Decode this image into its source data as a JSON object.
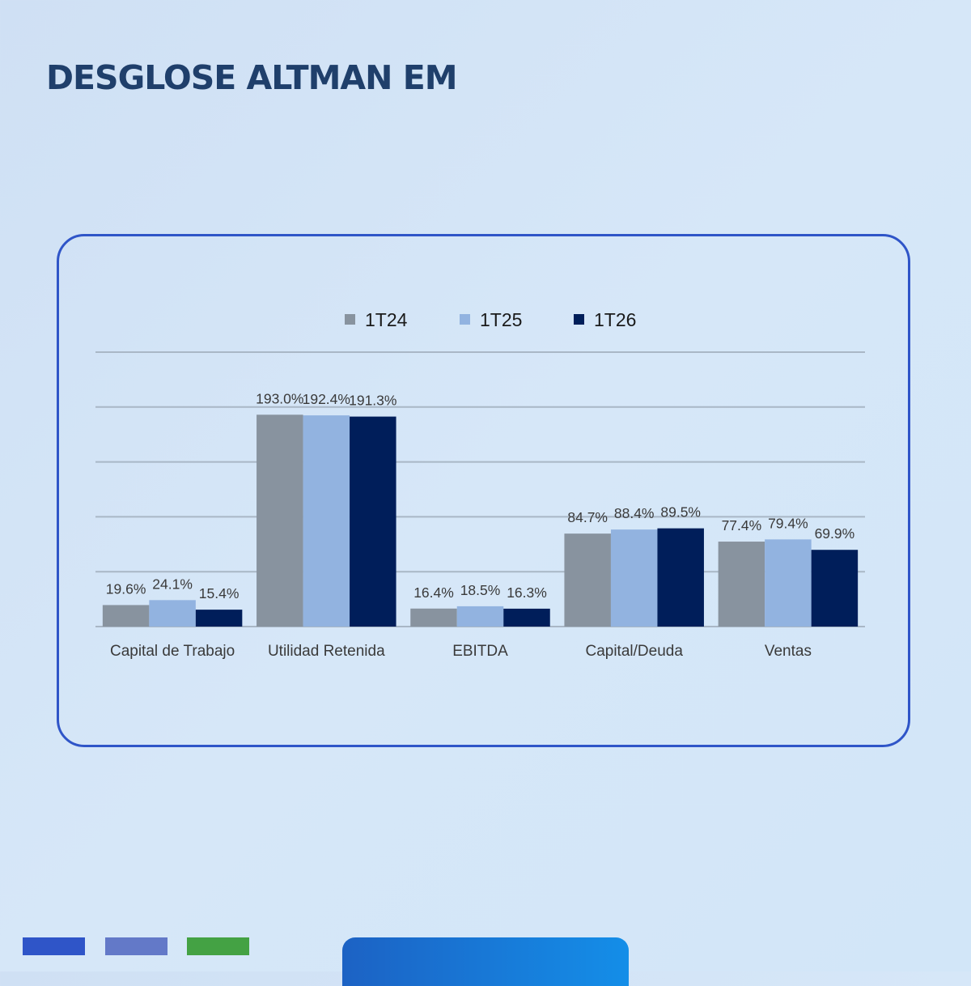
{
  "page": {
    "title": "DESGLOSE ALTMAN EM"
  },
  "colors": {
    "frame_border": "#2f55c8",
    "title": "#1f3f6b",
    "footer_swatches": [
      "#2f55c8",
      "#6379c8",
      "#44a244"
    ],
    "footer_tab_gradient": [
      "#1c62c4",
      "#148ee8"
    ]
  },
  "chart_data": {
    "type": "bar",
    "title": "",
    "xlabel": "",
    "ylabel": "",
    "ylim": [
      0,
      250
    ],
    "grid": true,
    "legend_position": "top-center",
    "categories": [
      "Capital de Trabajo",
      "Utilidad Retenida",
      "EBITDA",
      "Capital/Deuda",
      "Ventas"
    ],
    "series": [
      {
        "name": "1T24",
        "color": "#88939f",
        "values": [
          19.6,
          193.0,
          16.4,
          84.7,
          77.4
        ],
        "labels": [
          "19.6%",
          "193.0%",
          "16.4%",
          "84.7%",
          "77.4%"
        ]
      },
      {
        "name": "1T25",
        "color": "#92b3e0",
        "values": [
          24.1,
          192.4,
          18.5,
          88.4,
          79.4
        ],
        "labels": [
          "24.1%",
          "192.4%",
          "18.5%",
          "88.4%",
          "79.4%"
        ]
      },
      {
        "name": "1T26",
        "color": "#001e5a",
        "values": [
          15.4,
          191.3,
          16.3,
          89.5,
          69.9
        ],
        "labels": [
          "15.4%",
          "191.3%",
          "16.3%",
          "89.5%",
          "69.9%"
        ]
      }
    ]
  }
}
